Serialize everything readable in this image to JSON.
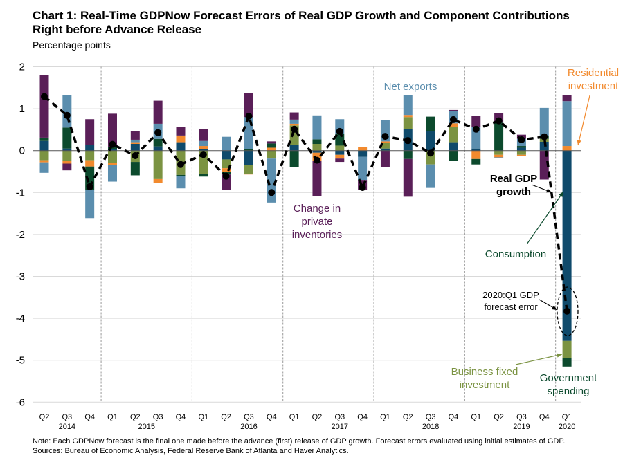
{
  "chart_data": {
    "type": "bar",
    "title": "Chart 1:  Real-Time GDPNow Forecast Errors of Real GDP Growth and Component Contributions Right before Advance Release",
    "subtitle": "Percentage points",
    "ylim": [
      -6,
      2
    ],
    "yticks": [
      2,
      1,
      0,
      -1,
      -2,
      -3,
      -4,
      -5,
      -6
    ],
    "grid": true,
    "categories": [
      "Q2",
      "Q3",
      "Q4",
      "Q1",
      "Q2",
      "Q3",
      "Q4",
      "Q1",
      "Q2",
      "Q3",
      "Q4",
      "Q1",
      "Q2",
      "Q3",
      "Q4",
      "Q1",
      "Q2",
      "Q3",
      "Q4",
      "Q1",
      "Q2",
      "Q3",
      "Q4",
      "Q1"
    ],
    "years": [
      {
        "label": "2014",
        "index": 1
      },
      {
        "label": "2015",
        "index": 4.5
      },
      {
        "label": "2016",
        "index": 9
      },
      {
        "label": "2017",
        "index": 13
      },
      {
        "label": "2018",
        "index": 17
      },
      {
        "label": "2019",
        "index": 21
      },
      {
        "label": "2020",
        "index": 23
      }
    ],
    "year_separators_after_index": [
      2,
      6,
      10,
      14,
      18,
      22
    ],
    "components": {
      "C": {
        "name": "Consumption",
        "color": "#0f4a6b"
      },
      "G": {
        "name": "Government spending",
        "color": "#0c4a2d"
      },
      "B": {
        "name": "Business fixed investment",
        "color": "#7b9342"
      },
      "R": {
        "name": "Residential investment",
        "color": "#f28a2e"
      },
      "N": {
        "name": "Net exports",
        "color": "#5b8eae"
      },
      "I": {
        "name": "Change in private inventories",
        "color": "#5a1f58"
      }
    },
    "bars": [
      {
        "segments": [
          [
            "C",
            0.23
          ],
          [
            "G",
            0.08
          ],
          [
            "I",
            1.49
          ],
          [
            "B",
            -0.23
          ],
          [
            "R",
            -0.05
          ],
          [
            "N",
            -0.25
          ]
        ],
        "gdp": 1.29
      },
      {
        "segments": [
          [
            "C",
            0.05
          ],
          [
            "G",
            0.5
          ],
          [
            "N",
            0.77
          ],
          [
            "B",
            -0.24
          ],
          [
            "R",
            -0.07
          ],
          [
            "I",
            -0.16
          ]
        ],
        "gdp": 0.84
      },
      {
        "segments": [
          [
            "C",
            0.14
          ],
          [
            "I",
            0.61
          ],
          [
            "B",
            -0.23
          ],
          [
            "R",
            -0.15
          ],
          [
            "G",
            -0.56
          ],
          [
            "N",
            -0.67
          ]
        ],
        "gdp": -0.86
      },
      {
        "segments": [
          [
            "C",
            0.03
          ],
          [
            "G",
            0.05
          ],
          [
            "I",
            0.8
          ],
          [
            "B",
            -0.29
          ],
          [
            "R",
            -0.06
          ],
          [
            "N",
            -0.39
          ]
        ],
        "gdp": 0.15
      },
      {
        "segments": [
          [
            "C",
            0.16
          ],
          [
            "R",
            0.04
          ],
          [
            "N",
            0.06
          ],
          [
            "I",
            0.21
          ],
          [
            "B",
            -0.27
          ],
          [
            "G",
            -0.32
          ]
        ],
        "gdp": -0.12
      },
      {
        "segments": [
          [
            "C",
            0.1
          ],
          [
            "G",
            0.18
          ],
          [
            "N",
            0.36
          ],
          [
            "I",
            0.55
          ],
          [
            "B",
            -0.68
          ],
          [
            "R",
            -0.09
          ]
        ],
        "gdp": 0.43
      },
      {
        "segments": [
          [
            "C",
            0.2
          ],
          [
            "R",
            0.16
          ],
          [
            "I",
            0.21
          ],
          [
            "B",
            -0.58
          ],
          [
            "G",
            -0.03
          ],
          [
            "N",
            -0.29
          ]
        ],
        "gdp": -0.33
      },
      {
        "segments": [
          [
            "C",
            0.03
          ],
          [
            "R",
            0.08
          ],
          [
            "N",
            0.12
          ],
          [
            "I",
            0.28
          ],
          [
            "B",
            -0.55
          ],
          [
            "G",
            -0.07
          ]
        ],
        "gdp": -0.09
      },
      {
        "segments": [
          [
            "N",
            0.33
          ],
          [
            "C",
            -0.21
          ],
          [
            "B",
            -0.21
          ],
          [
            "R",
            -0.09
          ],
          [
            "G",
            -0.06
          ],
          [
            "I",
            -0.37
          ]
        ],
        "gdp": -0.61
      },
      {
        "segments": [
          [
            "G",
            0.03
          ],
          [
            "N",
            0.77
          ],
          [
            "I",
            0.58
          ],
          [
            "C",
            -0.34
          ],
          [
            "B",
            -0.21
          ],
          [
            "R",
            -0.02
          ]
        ],
        "gdp": 0.82
      },
      {
        "segments": [
          [
            "R",
            0.07
          ],
          [
            "G",
            0.1
          ],
          [
            "I",
            0.05
          ],
          [
            "B",
            -0.19
          ],
          [
            "N",
            -1.05
          ]
        ],
        "gdp": -1.0
      },
      {
        "segments": [
          [
            "C",
            0.14
          ],
          [
            "B",
            0.46
          ],
          [
            "R",
            0.04
          ],
          [
            "N",
            0.1
          ],
          [
            "I",
            0.17
          ],
          [
            "G",
            -0.39
          ]
        ],
        "gdp": 0.51
      },
      {
        "segments": [
          [
            "B",
            0.16
          ],
          [
            "G",
            0.11
          ],
          [
            "N",
            0.57
          ],
          [
            "C",
            -0.05
          ],
          [
            "R",
            -0.2
          ],
          [
            "I",
            -0.83
          ]
        ],
        "gdp": -0.23
      },
      {
        "segments": [
          [
            "B",
            0.12
          ],
          [
            "G",
            0.28
          ],
          [
            "N",
            0.35
          ],
          [
            "C",
            -0.1
          ],
          [
            "R",
            -0.09
          ],
          [
            "I",
            -0.08
          ]
        ],
        "gdp": 0.46
      },
      {
        "segments": [
          [
            "R",
            0.08
          ],
          [
            "C",
            -0.15
          ],
          [
            "N",
            -0.55
          ],
          [
            "I",
            -0.24
          ]
        ],
        "gdp": -0.88
      },
      {
        "segments": [
          [
            "C",
            0.05
          ],
          [
            "B",
            0.14
          ],
          [
            "R",
            0.03
          ],
          [
            "N",
            0.51
          ],
          [
            "I",
            -0.39
          ]
        ],
        "gdp": 0.34
      },
      {
        "segments": [
          [
            "C",
            0.51
          ],
          [
            "B",
            0.29
          ],
          [
            "R",
            0.05
          ],
          [
            "N",
            0.48
          ],
          [
            "G",
            -0.2
          ],
          [
            "I",
            -0.9
          ]
        ],
        "gdp": 0.24
      },
      {
        "segments": [
          [
            "C",
            0.47
          ],
          [
            "G",
            0.34
          ],
          [
            "B",
            -0.33
          ],
          [
            "N",
            -0.56
          ]
        ],
        "gdp": -0.06
      },
      {
        "segments": [
          [
            "C",
            0.2
          ],
          [
            "B",
            0.36
          ],
          [
            "R",
            0.09
          ],
          [
            "N",
            0.3
          ],
          [
            "I",
            0.02
          ],
          [
            "G",
            -0.24
          ]
        ],
        "gdp": 0.74
      },
      {
        "segments": [
          [
            "C",
            0.05
          ],
          [
            "N",
            0.52
          ],
          [
            "I",
            0.26
          ],
          [
            "R",
            -0.2
          ],
          [
            "G",
            -0.13
          ]
        ],
        "gdp": 0.51
      },
      {
        "segments": [
          [
            "G",
            0.67
          ],
          [
            "I",
            0.22
          ],
          [
            "B",
            -0.1
          ],
          [
            "R",
            -0.06
          ],
          [
            "N",
            -0.02
          ]
        ],
        "gdp": 0.71
      },
      {
        "segments": [
          [
            "C",
            0.07
          ],
          [
            "G",
            0.04
          ],
          [
            "N",
            0.17
          ],
          [
            "I",
            0.1
          ],
          [
            "B",
            -0.1
          ],
          [
            "R",
            -0.03
          ]
        ],
        "gdp": 0.26
      },
      {
        "segments": [
          [
            "C",
            0.21
          ],
          [
            "B",
            0.07
          ],
          [
            "G",
            0.07
          ],
          [
            "N",
            0.67
          ],
          [
            "I",
            -0.69
          ]
        ],
        "gdp": 0.33
      },
      {
        "segments": [
          [
            "R",
            0.11
          ],
          [
            "N",
            1.07
          ],
          [
            "I",
            0.15
          ],
          [
            "C",
            -4.54
          ],
          [
            "B",
            -0.4
          ],
          [
            "G",
            -0.21
          ]
        ],
        "gdp": -3.83
      }
    ],
    "annotations": {
      "net_exports": "Net exports",
      "inventories": [
        "Change in",
        "private",
        "inventories"
      ],
      "gdp": [
        "Real GDP",
        "growth"
      ],
      "residential": [
        "Residential",
        "investment"
      ],
      "consumption": "Consumption",
      "forecast_error": [
        "2020:Q1 GDP",
        "forecast error"
      ],
      "business": [
        "Business fixed",
        "investment"
      ],
      "government": [
        "Government",
        "spending"
      ]
    }
  },
  "footer": {
    "note": "Note:  Each GDPNow forecast is the final one made before the advance (first) release of GDP growth.  Forecast errors evaluated using initial estimates of GDP.",
    "sources": "Sources:  Bureau of Economic Analysis, Federal Reserve Bank of Atlanta and Haver Analytics."
  }
}
